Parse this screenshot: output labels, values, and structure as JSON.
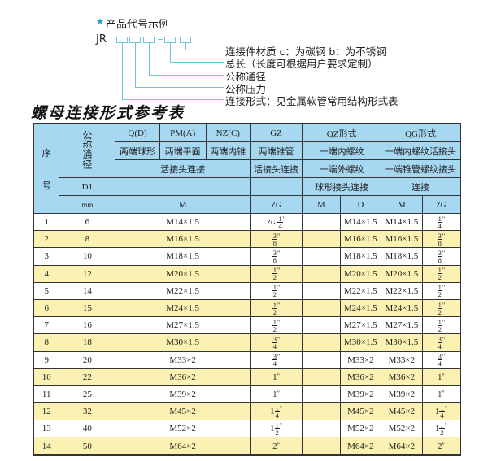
{
  "example": {
    "title": "产品代号示例",
    "star_icon": "star",
    "prefix": "JR",
    "labels": [
      "连接件材质   c：为碳钢   b：为不锈钢",
      "总长（长度可根据用户要求定制）",
      "公称通径",
      "公称压力",
      "连接形式：见金属软管常用结构形式表"
    ]
  },
  "table_title": "螺母连接形式参考表",
  "header": {
    "seq": "序",
    "seq2": "号",
    "nominal": "公称通径",
    "d1": "D1",
    "mm": "mm",
    "q": "Q(D)",
    "pm": "PM(A)",
    "nz": "NZ(C)",
    "gz": "GZ",
    "qz": "QZ形式",
    "qg": "QG形式",
    "q_desc": "两端球形",
    "pm_desc": "两端平面",
    "nz_desc": "两端内锥",
    "gz_desc": "两端锥管",
    "qz_desc1": "一端内螺纹",
    "qg_desc1": "一端内螺纹活接头",
    "union1": "活接头连接",
    "union2": "活接头连接",
    "qz_desc2": "一端外螺纹",
    "qg_desc2": "一端锥管螺纹接头",
    "qz_desc3": "球形接头连接",
    "qg_desc3": "连接",
    "m": "M",
    "zg": "ZG",
    "qz_m": "M",
    "qz_d": "D",
    "qg_m": "M",
    "qg_zg": "ZG"
  },
  "rows": [
    {
      "seq": "1",
      "dn": "6",
      "m": "M14×1.5",
      "zg": {
        "pre": "ZG",
        "whole": "",
        "n": "1",
        "d": "4"
      },
      "qz_m": "",
      "qz_d": "M14×1.5",
      "qg_m": "M14×1.5",
      "qg_zg": {
        "whole": "",
        "n": "1",
        "d": "4"
      }
    },
    {
      "seq": "2",
      "dn": "8",
      "m": "M16×1.5",
      "zg": {
        "whole": "",
        "n": "3",
        "d": "8"
      },
      "qz_m": "",
      "qz_d": "M16×1.5",
      "qg_m": "M16×1.5",
      "qg_zg": {
        "whole": "",
        "n": "3",
        "d": "8"
      }
    },
    {
      "seq": "3",
      "dn": "10",
      "m": "M18×1.5",
      "zg": {
        "whole": "",
        "n": "3",
        "d": "8"
      },
      "qz_m": "",
      "qz_d": "M18×1.5",
      "qg_m": "M18×1.5",
      "qg_zg": {
        "whole": "",
        "n": "3",
        "d": "8"
      }
    },
    {
      "seq": "4",
      "dn": "12",
      "m": "M20×1.5",
      "zg": {
        "whole": "",
        "n": "1",
        "d": "2"
      },
      "qz_m": "",
      "qz_d": "M20×1.5",
      "qg_m": "M20×1.5",
      "qg_zg": {
        "whole": "",
        "n": "1",
        "d": "2"
      }
    },
    {
      "seq": "5",
      "dn": "14",
      "m": "M22×1.5",
      "zg": {
        "whole": "",
        "n": "1",
        "d": "2"
      },
      "qz_m": "",
      "qz_d": "M22×1.5",
      "qg_m": "M22×1.5",
      "qg_zg": {
        "whole": "",
        "n": "1",
        "d": "2"
      }
    },
    {
      "seq": "6",
      "dn": "15",
      "m": "M24×1.5",
      "zg": {
        "whole": "",
        "n": "1",
        "d": "2"
      },
      "qz_m": "",
      "qz_d": "M24×1.5",
      "qg_m": "M24×1.5",
      "qg_zg": {
        "whole": "",
        "n": "1",
        "d": "2"
      }
    },
    {
      "seq": "7",
      "dn": "16",
      "m": "M27×1.5",
      "zg": {
        "whole": "",
        "n": "1",
        "d": "2"
      },
      "qz_m": "",
      "qz_d": "M27×1.5",
      "qg_m": "M27×1.5",
      "qg_zg": {
        "whole": "",
        "n": "1",
        "d": "2"
      }
    },
    {
      "seq": "8",
      "dn": "18",
      "m": "M30×1.5",
      "zg": {
        "whole": "",
        "n": "3",
        "d": "4"
      },
      "qz_m": "",
      "qz_d": "M30×1.5",
      "qg_m": "M30×1.5",
      "qg_zg": {
        "whole": "",
        "n": "3",
        "d": "4"
      }
    },
    {
      "seq": "9",
      "dn": "20",
      "m": "M33×2",
      "zg": {
        "whole": "",
        "n": "3",
        "d": "4"
      },
      "qz_m": "",
      "qz_d": "M33×2",
      "qg_m": "M33×2",
      "qg_zg": {
        "whole": "",
        "n": "3",
        "d": "4"
      }
    },
    {
      "seq": "10",
      "dn": "22",
      "m": "M36×2",
      "zg": {
        "whole": "1",
        "n": "",
        "d": ""
      },
      "qz_m": "",
      "qz_d": "M36×2",
      "qg_m": "M36×2",
      "qg_zg": {
        "whole": "1",
        "n": "",
        "d": ""
      }
    },
    {
      "seq": "11",
      "dn": "25",
      "m": "M39×2",
      "zg": {
        "whole": "1",
        "n": "",
        "d": ""
      },
      "qz_m": "",
      "qz_d": "M39×2",
      "qg_m": "M39×2",
      "qg_zg": {
        "whole": "1",
        "n": "",
        "d": ""
      }
    },
    {
      "seq": "12",
      "dn": "32",
      "m": "M45×2",
      "zg": {
        "whole": "1",
        "n": "1",
        "d": "4"
      },
      "qz_m": "",
      "qz_d": "M45×2",
      "qg_m": "M45×2",
      "qg_zg": {
        "whole": "1",
        "n": "1",
        "d": "4"
      }
    },
    {
      "seq": "13",
      "dn": "40",
      "m": "M52×2",
      "zg": {
        "whole": "1",
        "n": "1",
        "d": "2"
      },
      "qz_m": "",
      "qz_d": "M52×2",
      "qg_m": "M52×2",
      "qg_zg": {
        "whole": "1",
        "n": "1",
        "d": "2"
      }
    },
    {
      "seq": "14",
      "dn": "50",
      "m": "M64×2",
      "zg": {
        "whole": "2",
        "n": "",
        "d": ""
      },
      "qz_m": "",
      "qz_d": "M64×2",
      "qg_m": "M64×2",
      "qg_zg": {
        "whole": "2",
        "n": "",
        "d": ""
      }
    }
  ],
  "inch_mark": "\"",
  "colors": {
    "header_bg": "#a7d8f2",
    "stripe": "#fbf1b2",
    "accent": "#1e9bd7"
  }
}
